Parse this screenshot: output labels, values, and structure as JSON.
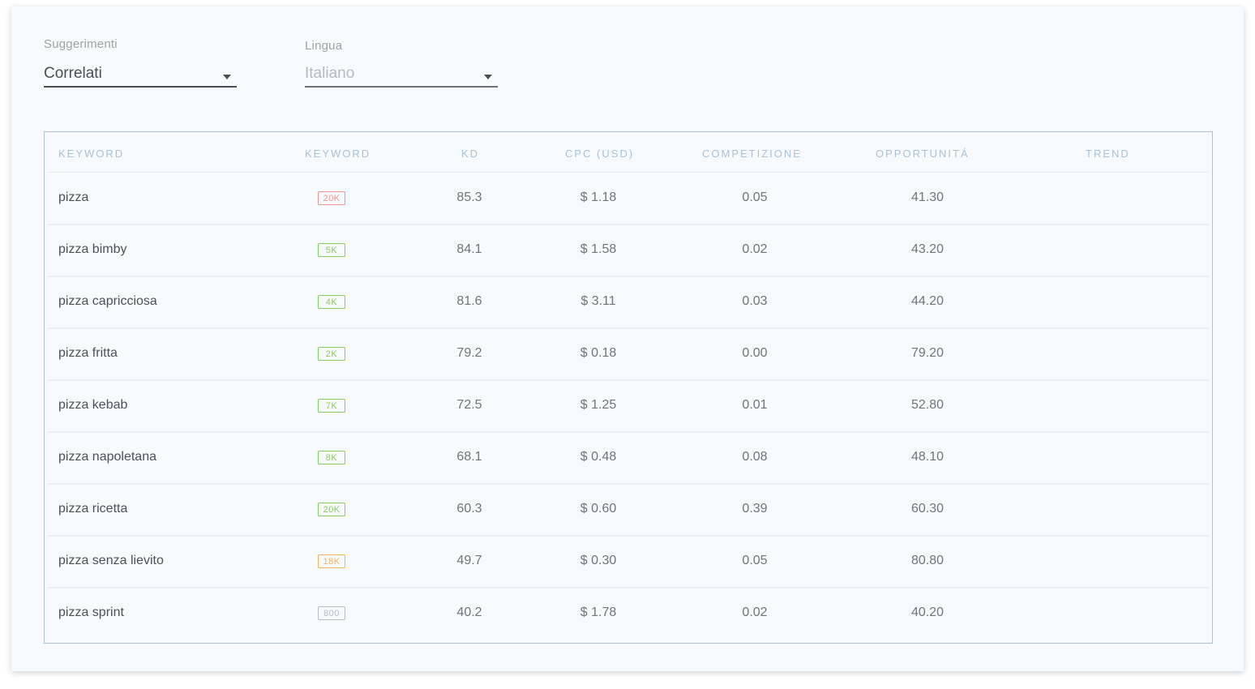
{
  "filters": {
    "suggestions": {
      "label": "Suggerimenti",
      "value": "Correlati"
    },
    "language": {
      "label": "Lingua",
      "value": "Italiano"
    }
  },
  "table": {
    "headers": {
      "keyword": "KEYWORD",
      "volume": "KEYWORD",
      "kd": "KD",
      "cpc": "CPC (USD)",
      "competition": "COMPETIZIONE",
      "opportunity": "OPPORTUNITÁ",
      "trend": "TREND"
    },
    "rows": [
      {
        "keyword": "pizza",
        "volume": "20K",
        "kd": "85.3",
        "cpc": "$ 1.18",
        "competition": "0.05",
        "opportunity": "41.30"
      },
      {
        "keyword": "pizza bimby",
        "volume": "5K",
        "kd": "84.1",
        "cpc": "$ 1.58",
        "competition": "0.02",
        "opportunity": "43.20"
      },
      {
        "keyword": "pizza capricciosa",
        "volume": "4K",
        "kd": "81.6",
        "cpc": "$ 3.11",
        "competition": "0.03",
        "opportunity": "44.20"
      },
      {
        "keyword": "pizza fritta",
        "volume": "2K",
        "kd": "79.2",
        "cpc": "$ 0.18",
        "competition": "0.00",
        "opportunity": "79.20"
      },
      {
        "keyword": "pizza kebab",
        "volume": "7K",
        "kd": "72.5",
        "cpc": "$ 1.25",
        "competition": "0.01",
        "opportunity": "52.80"
      },
      {
        "keyword": "pizza napoletana",
        "volume": "8K",
        "kd": "68.1",
        "cpc": "$ 0.48",
        "competition": "0.08",
        "opportunity": "48.10"
      },
      {
        "keyword": "pizza ricetta",
        "volume": "20K",
        "kd": "60.3",
        "cpc": "$ 0.60",
        "competition": "0.39",
        "opportunity": "60.30"
      },
      {
        "keyword": "pizza senza lievito",
        "volume": "18K",
        "kd": "49.7",
        "cpc": "$ 0.30",
        "competition": "0.05",
        "opportunity": "80.80"
      },
      {
        "keyword": "pizza sprint",
        "volume": "800",
        "kd": "40.2",
        "cpc": "$ 1.78",
        "competition": "0.02",
        "opportunity": "40.20"
      }
    ]
  },
  "colors": {
    "badge_red": "#f0938f",
    "badge_green": "#8ccb5e",
    "badge_orange": "#f5b25a",
    "badge_gray": "#b9bec4",
    "table_border": "#a9c2d6"
  }
}
